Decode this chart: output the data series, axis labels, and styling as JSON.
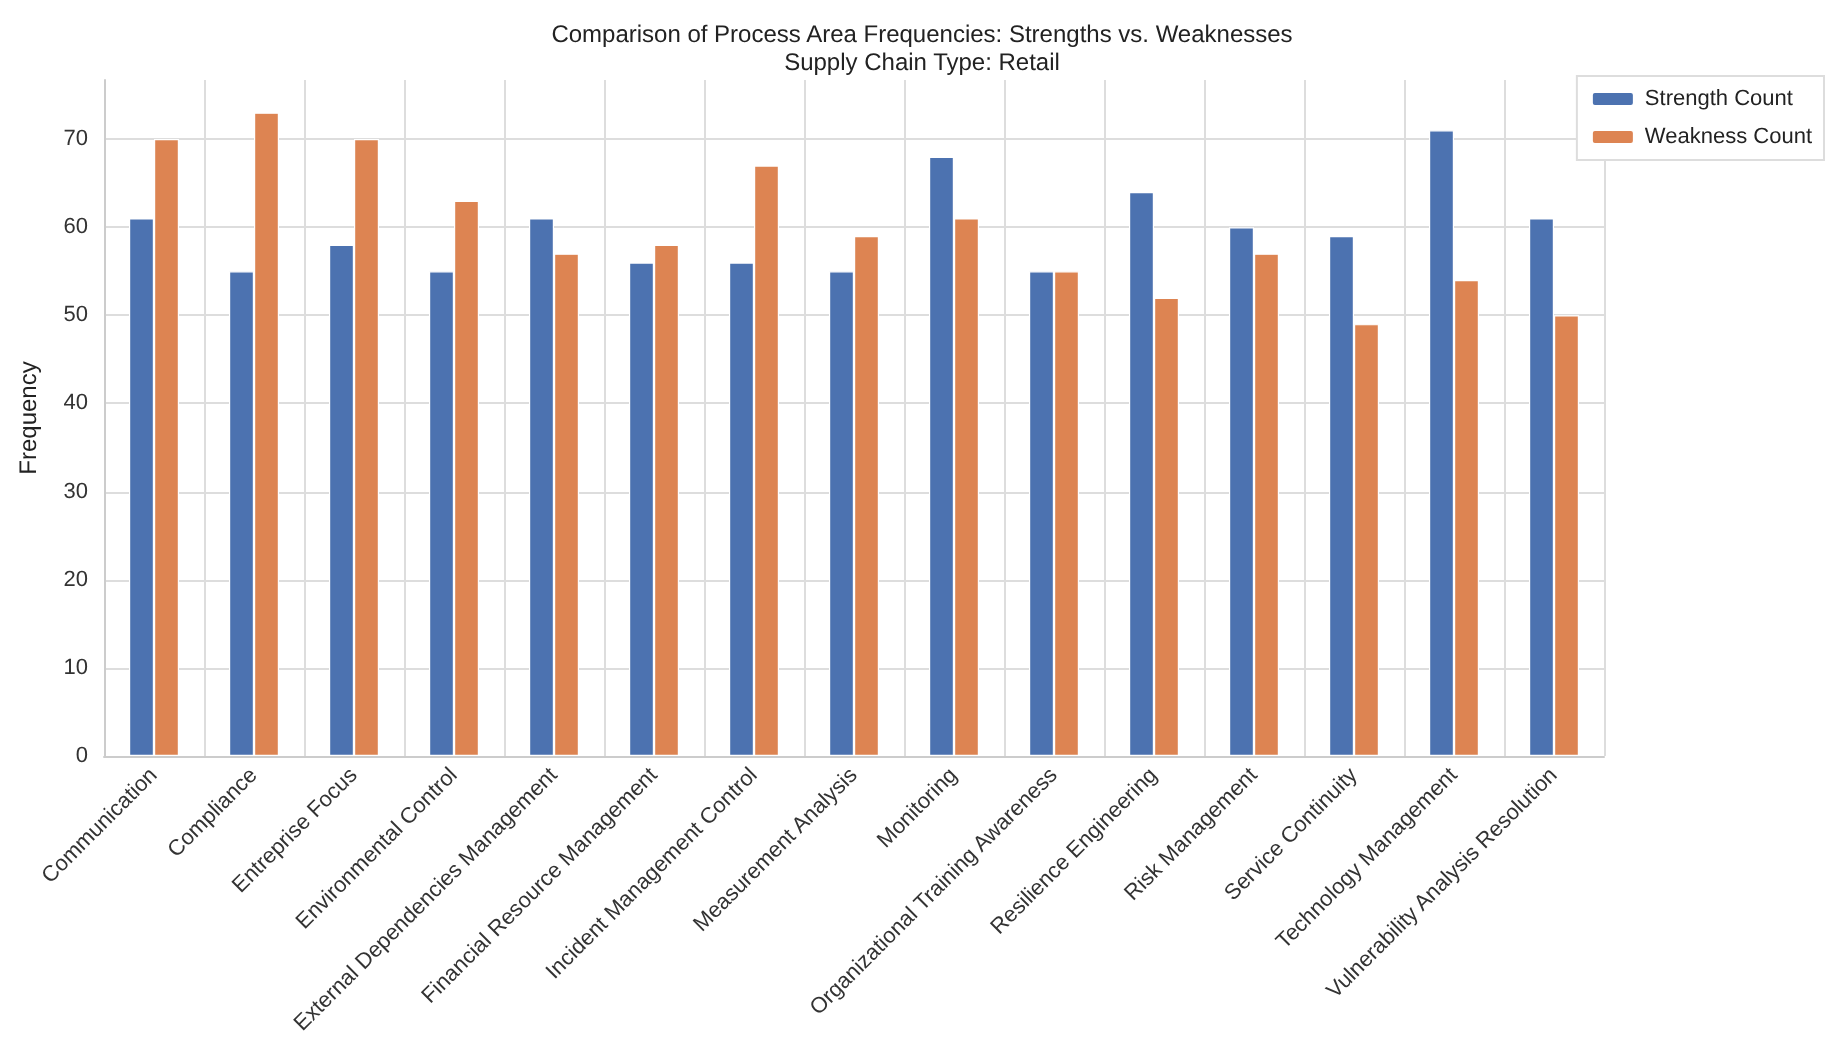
{
  "chart_data": {
    "type": "bar",
    "title": "Comparison of Process Area Frequencies: Strengths vs. Weaknesses",
    "subtitle": "Supply Chain Type: Retail",
    "ylabel": "Frequency",
    "categories": [
      "Communication",
      "Compliance",
      "Entreprise Focus",
      "Environmental Control",
      "External Dependencies Management",
      "Financial Resource Management",
      "Incident Management Control",
      "Measurement Analysis",
      "Monitoring",
      "Organizational Training Awareness",
      "Resilience Engineering",
      "Risk Management",
      "Service Continuity",
      "Technology Management",
      "Vulnerability Analysis Resolution"
    ],
    "series": [
      {
        "name": "Strength Count",
        "color": "#4c72b0",
        "values": [
          61,
          55,
          58,
          55,
          61,
          56,
          56,
          55,
          68,
          55,
          64,
          60,
          59,
          71,
          61
        ]
      },
      {
        "name": "Weakness Count",
        "color": "#dd8452",
        "values": [
          70,
          73,
          70,
          63,
          57,
          58,
          67,
          59,
          61,
          55,
          52,
          57,
          49,
          54,
          50
        ]
      }
    ],
    "ylim": [
      0,
      76.7
    ],
    "yticks": [
      0,
      10,
      20,
      30,
      40,
      50,
      60,
      70
    ],
    "grid": true,
    "legend": "top right"
  }
}
